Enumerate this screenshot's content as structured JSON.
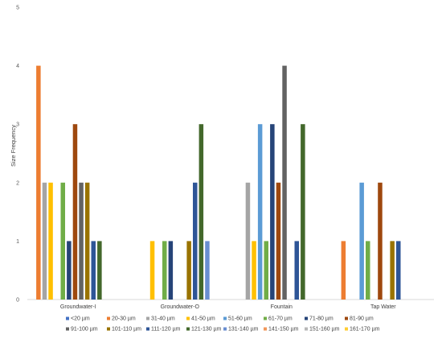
{
  "chart_data": {
    "type": "bar",
    "ylabel": "Size Frequency",
    "xlabel": "",
    "title": "",
    "ylim": [
      0,
      5
    ],
    "yticks": [
      "0",
      "1",
      "2",
      "3",
      "4",
      "5"
    ],
    "grid": false,
    "legend_position": "bottom",
    "categories": [
      "Groundwater-I",
      "Groundwater-O",
      "Fountain",
      "Tap Water"
    ],
    "series": [
      {
        "name": "<20 µm",
        "color": "#4472c4",
        "values": [
          0,
          0,
          0,
          0
        ]
      },
      {
        "name": "20-30 µm",
        "color": "#ed7d31",
        "values": [
          4,
          0,
          0,
          1
        ]
      },
      {
        "name": "31-40 µm",
        "color": "#a5a5a5",
        "values": [
          2,
          0,
          2,
          0
        ]
      },
      {
        "name": "41-50 µm",
        "color": "#ffc000",
        "values": [
          2,
          1,
          1,
          0
        ]
      },
      {
        "name": "51-60 µm",
        "color": "#5b9bd5",
        "values": [
          0,
          0,
          3,
          2
        ]
      },
      {
        "name": "61-70 µm",
        "color": "#70ad47",
        "values": [
          2,
          1,
          1,
          1
        ]
      },
      {
        "name": "71-80 µm",
        "color": "#264478",
        "values": [
          1,
          1,
          3,
          0
        ]
      },
      {
        "name": "81-90 µm",
        "color": "#9e480e",
        "values": [
          3,
          0,
          2,
          2
        ]
      },
      {
        "name": "91-100 µm",
        "color": "#636363",
        "values": [
          2,
          0,
          4,
          0
        ]
      },
      {
        "name": "101-110 µm",
        "color": "#997300",
        "values": [
          2,
          1,
          0,
          1
        ]
      },
      {
        "name": "111-120 µm",
        "color": "#2e5597",
        "values": [
          1,
          2,
          1,
          1
        ]
      },
      {
        "name": "121-130 µm",
        "color": "#43682b",
        "values": [
          1,
          3,
          3,
          0
        ]
      },
      {
        "name": "131-140 µm",
        "color": "#698ed0",
        "values": [
          0,
          1,
          0,
          0
        ]
      },
      {
        "name": "141-150 µm",
        "color": "#f1975a",
        "values": [
          0,
          0,
          0,
          0
        ]
      },
      {
        "name": "151-160 µm",
        "color": "#b7b7b7",
        "values": [
          0,
          0,
          0,
          0
        ]
      },
      {
        "name": "161-170 µm",
        "color": "#ffcd33",
        "values": [
          0,
          0,
          0,
          0
        ]
      }
    ]
  }
}
